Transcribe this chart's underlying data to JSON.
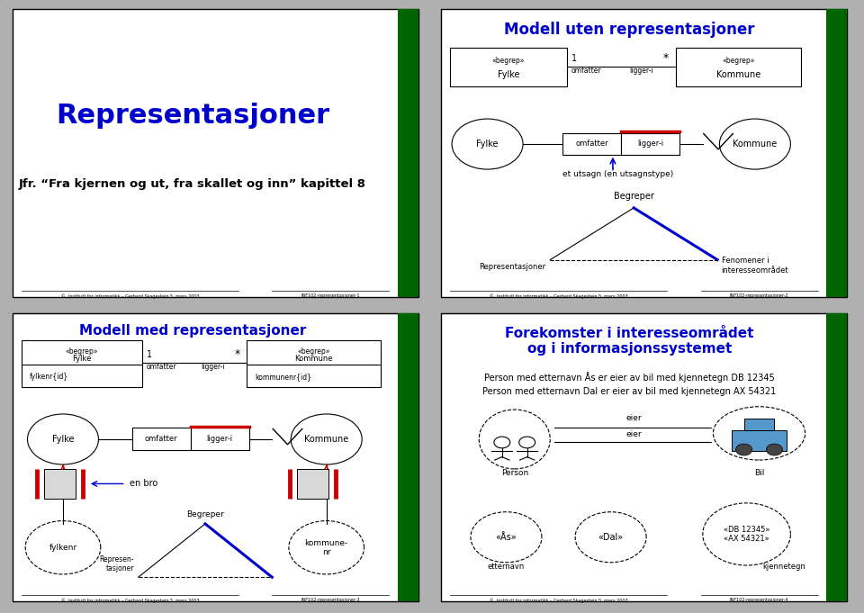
{
  "bg_color": "#ffffff",
  "border_color": "#000000",
  "green_bar_color": "#006400",
  "slide_bg": "#ffffff",
  "title_color": "#0000cc",
  "text_color": "#000000",
  "red_color": "#cc0000",
  "blue_color": "#0000cc",
  "footer_text": "©  Institutt for informatikk – Gerhard Skagestein 5. mars 2003",
  "slide1": {
    "title": "Representasjoner",
    "subtitle": "Jfr. “Fra kjernen og ut, fra skallet og inn” kapittel 8",
    "footer_right": "INF102-representasjoner-1"
  },
  "slide2": {
    "title": "Modell uten representasjoner",
    "footer_right": "INF102-representasjoner-2"
  },
  "slide3": {
    "title": "Modell med representasjoner",
    "footer_right": "INF102-representasjoner-3"
  },
  "slide4": {
    "title": "Forekomster i interesseområdet\nog i informasjonssystemet",
    "footer_right": "INF102-representasjoner-4",
    "line1": "Person med etternavn Ås er eier av bil med kjennetegn DB 12345",
    "line2": "Person med etternavn Dal er eier av bil med kjennetegn AX 54321"
  }
}
